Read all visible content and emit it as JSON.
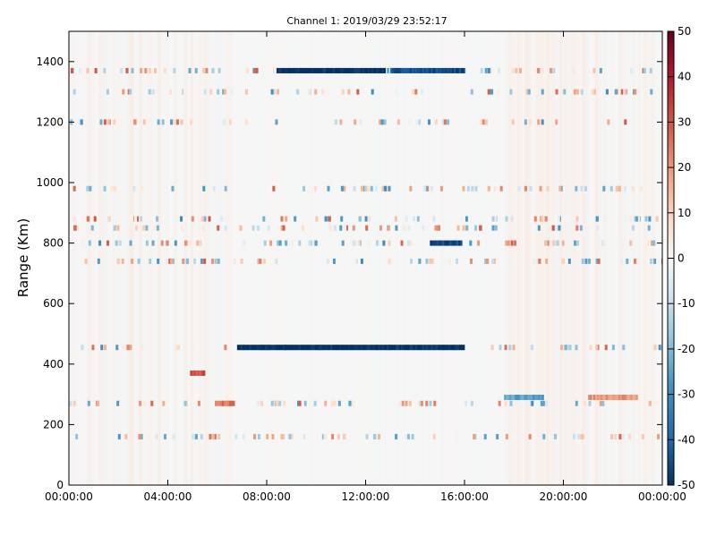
{
  "chart_data": {
    "type": "heatmap",
    "title": "Channel 1: 2019/03/29 23:52:17",
    "xlabel": "",
    "ylabel": "Range (Km)",
    "x_ticks": [
      "00:00:00",
      "04:00:00",
      "08:00:00",
      "12:00:00",
      "16:00:00",
      "20:00:00",
      "00:00:00"
    ],
    "x_range_hours": [
      0,
      24
    ],
    "y_ticks": [
      0,
      200,
      400,
      600,
      800,
      1000,
      1200,
      1400
    ],
    "y_range": [
      0,
      1500
    ],
    "colorbar": {
      "colormap": "RdBu_r",
      "range": [
        -50,
        50
      ],
      "ticks": [
        50,
        40,
        30,
        20,
        10,
        0,
        -10,
        -20,
        -30,
        -40,
        -50
      ],
      "low_color": "#053061",
      "mid_color": "#f7f7f7",
      "high_color": "#67001f"
    },
    "bands": [
      {
        "range_km": 1370,
        "dominant_value": -50,
        "time_start_hours": 8.4,
        "time_end_hours": 12.8,
        "note": "saturated strip"
      },
      {
        "range_km": 1370,
        "dominant_value": -45,
        "time_start_hours": 13.0,
        "time_end_hours": 16.0
      },
      {
        "range_km": 455,
        "dominant_value": -50,
        "time_start_hours": 6.8,
        "time_end_hours": 16.0
      },
      {
        "range_km": 800,
        "dominant_value": -45,
        "time_start_hours": 14.6,
        "time_end_hours": 15.9
      },
      {
        "range_km": 370,
        "dominant_value": 30,
        "time_start_hours": 4.9,
        "time_end_hours": 5.5
      },
      {
        "range_km": 270,
        "dominant_value": 25,
        "time_start_hours": 5.9,
        "time_end_hours": 6.7
      },
      {
        "range_km": 290,
        "dominant_value": -25,
        "time_start_hours": 17.6,
        "time_end_hours": 19.2
      },
      {
        "range_km": 290,
        "dominant_value": 20,
        "time_start_hours": 21.0,
        "time_end_hours": 23.0
      }
    ]
  }
}
